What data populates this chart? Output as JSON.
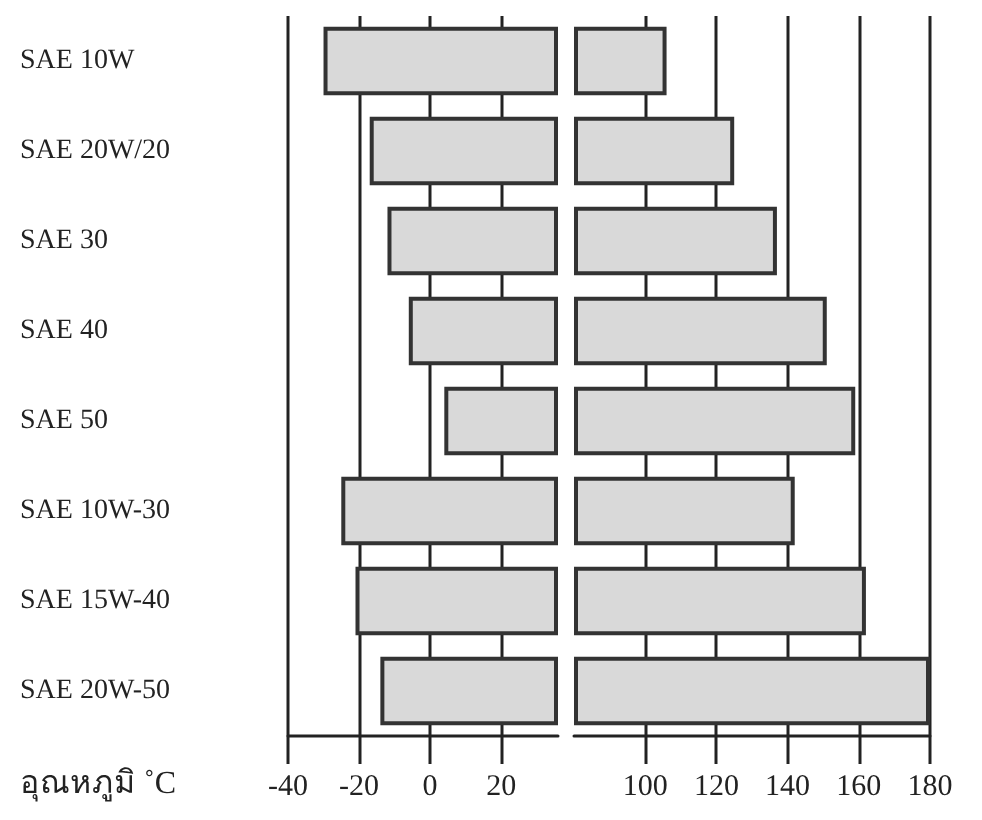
{
  "chart_data": [
    {
      "type": "bar",
      "orientation": "horizontal",
      "categories": [
        "SAE 10W",
        "SAE 20W/20",
        "SAE 30",
        "SAE 40",
        "SAE 50",
        "SAE 10W-30",
        "SAE 15W-40",
        "SAE 20W-50"
      ],
      "base": [
        -30,
        -17,
        -12,
        -6,
        4,
        -25,
        -21,
        -14
      ],
      "values": [
        66,
        53,
        48,
        42,
        32,
        61,
        57,
        50
      ],
      "color": "#d9d9d9",
      "xlim": [
        -40,
        36
      ],
      "xticks": [
        -40,
        -20,
        0,
        20
      ],
      "grid": "x",
      "xlabel": "อุณหภูมิ ˚C"
    },
    {
      "type": "bar",
      "orientation": "horizontal",
      "categories": [
        null,
        null,
        null,
        null,
        null,
        null,
        null,
        null
      ],
      "base": [
        80,
        80,
        80,
        80,
        80,
        80,
        80,
        80
      ],
      "values": [
        26,
        45,
        57,
        71,
        79,
        62,
        82,
        100
      ],
      "color": "#d9d9d9",
      "xlim": [
        80,
        180
      ],
      "xticks": [
        100,
        120,
        140,
        160,
        180
      ],
      "grid": "x",
      "tick_labels": "x"
    }
  ]
}
